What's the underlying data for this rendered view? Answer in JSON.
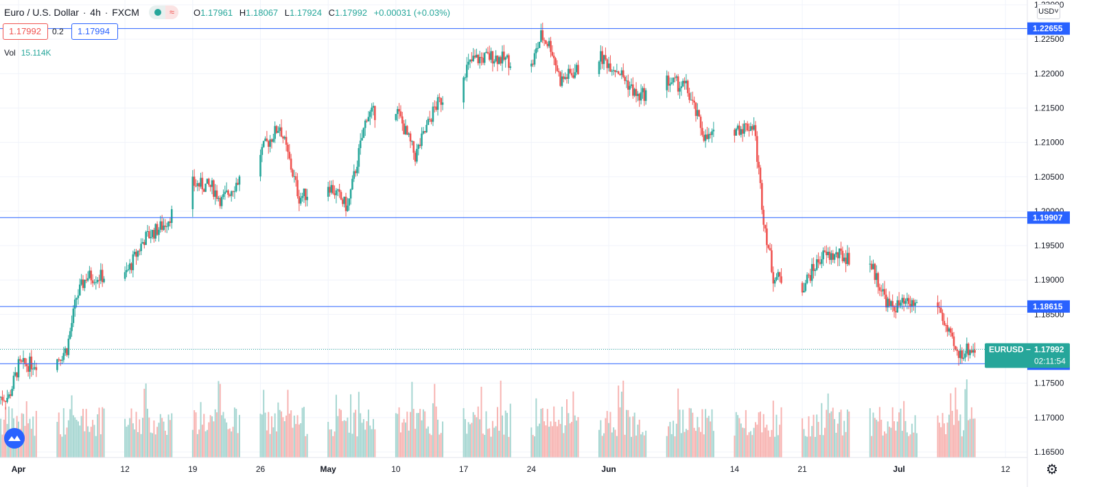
{
  "header": {
    "symbol": "Euro / U.S. Dollar",
    "interval": "4h",
    "exchange": "FXCM",
    "open_label": "O",
    "open": "1.17961",
    "high_label": "H",
    "high": "1.18067",
    "low_label": "L",
    "low": "1.17924",
    "close_label": "C",
    "close": "1.17992",
    "change": "+0.00031 (+0.03%)",
    "wave_icon": "≈"
  },
  "trade": {
    "sell_price": "1.17992",
    "spread": "0.2",
    "buy_price": "1.17994"
  },
  "volume": {
    "label": "Vol",
    "value": "15.114K"
  },
  "currency_button": "USD",
  "colors": {
    "up": "#26a69a",
    "down": "#ef5350",
    "line": "#2962ff",
    "grid": "#f0f3fa"
  },
  "chart_data": {
    "type": "candlestick",
    "symbol": "EURUSD",
    "interval": "4h",
    "x_tick_labels": [
      "Apr",
      "12",
      "19",
      "26",
      "May",
      "10",
      "17",
      "24",
      "Jun",
      "14",
      "21",
      "Jul",
      "12"
    ],
    "y_ticks": [
      "1.16500",
      "1.17000",
      "1.17500",
      "1.18000",
      "1.18500",
      "1.19000",
      "1.19500",
      "1.20000",
      "1.20500",
      "1.21000",
      "1.21500",
      "1.22000",
      "1.22500",
      "1.23000"
    ],
    "ylim": [
      1.1642,
      1.2307
    ],
    "horizontal_lines": [
      "1.22655",
      "1.19907",
      "1.18615",
      "1.17783"
    ],
    "last_price": {
      "label": "EURUSD",
      "value": "1.17992",
      "countdown": "02:11:54"
    },
    "close_anchors": [
      {
        "date": "2021-03-31",
        "close": 1.173
      },
      {
        "date": "2021-04-01",
        "close": 1.1775
      },
      {
        "date": "2021-04-05",
        "close": 1.1785
      },
      {
        "date": "2021-04-06",
        "close": 1.18
      },
      {
        "date": "2021-04-07",
        "close": 1.1875
      },
      {
        "date": "2021-04-08",
        "close": 1.1905
      },
      {
        "date": "2021-04-12",
        "close": 1.1905
      },
      {
        "date": "2021-04-14",
        "close": 1.196
      },
      {
        "date": "2021-04-16",
        "close": 1.198
      },
      {
        "date": "2021-04-19",
        "close": 1.204
      },
      {
        "date": "2021-04-21",
        "close": 1.2035
      },
      {
        "date": "2021-04-22",
        "close": 1.2015
      },
      {
        "date": "2021-04-26",
        "close": 1.2085
      },
      {
        "date": "2021-04-28",
        "close": 1.2125
      },
      {
        "date": "2021-04-30",
        "close": 1.202
      },
      {
        "date": "2021-05-03",
        "close": 1.204
      },
      {
        "date": "2021-05-05",
        "close": 1.2005
      },
      {
        "date": "2021-05-07",
        "close": 1.214
      },
      {
        "date": "2021-05-10",
        "close": 1.215
      },
      {
        "date": "2021-05-12",
        "close": 1.208
      },
      {
        "date": "2021-05-14",
        "close": 1.215
      },
      {
        "date": "2021-05-18",
        "close": 1.222
      },
      {
        "date": "2021-05-20",
        "close": 1.2225
      },
      {
        "date": "2021-05-24",
        "close": 1.221
      },
      {
        "date": "2021-05-25",
        "close": 1.2255
      },
      {
        "date": "2021-05-26",
        "close": 1.224
      },
      {
        "date": "2021-05-27",
        "close": 1.219
      },
      {
        "date": "2021-05-31",
        "close": 1.2225
      },
      {
        "date": "2021-06-02",
        "close": 1.2205
      },
      {
        "date": "2021-06-04",
        "close": 1.2165
      },
      {
        "date": "2021-06-07",
        "close": 1.219
      },
      {
        "date": "2021-06-09",
        "close": 1.218
      },
      {
        "date": "2021-06-11",
        "close": 1.2105
      },
      {
        "date": "2021-06-14",
        "close": 1.212
      },
      {
        "date": "2021-06-16",
        "close": 1.2125
      },
      {
        "date": "2021-06-17",
        "close": 1.199
      },
      {
        "date": "2021-06-18",
        "close": 1.1905
      },
      {
        "date": "2021-06-21",
        "close": 1.189
      },
      {
        "date": "2021-06-23",
        "close": 1.1935
      },
      {
        "date": "2021-06-25",
        "close": 1.1935
      },
      {
        "date": "2021-06-28",
        "close": 1.1925
      },
      {
        "date": "2021-06-30",
        "close": 1.186
      },
      {
        "date": "2021-07-02",
        "close": 1.1865
      },
      {
        "date": "2021-07-05",
        "close": 1.1865
      },
      {
        "date": "2021-07-06",
        "close": 1.1825
      },
      {
        "date": "2021-07-07",
        "close": 1.179
      },
      {
        "date": "2021-07-08",
        "close": 1.1799
      }
    ]
  }
}
